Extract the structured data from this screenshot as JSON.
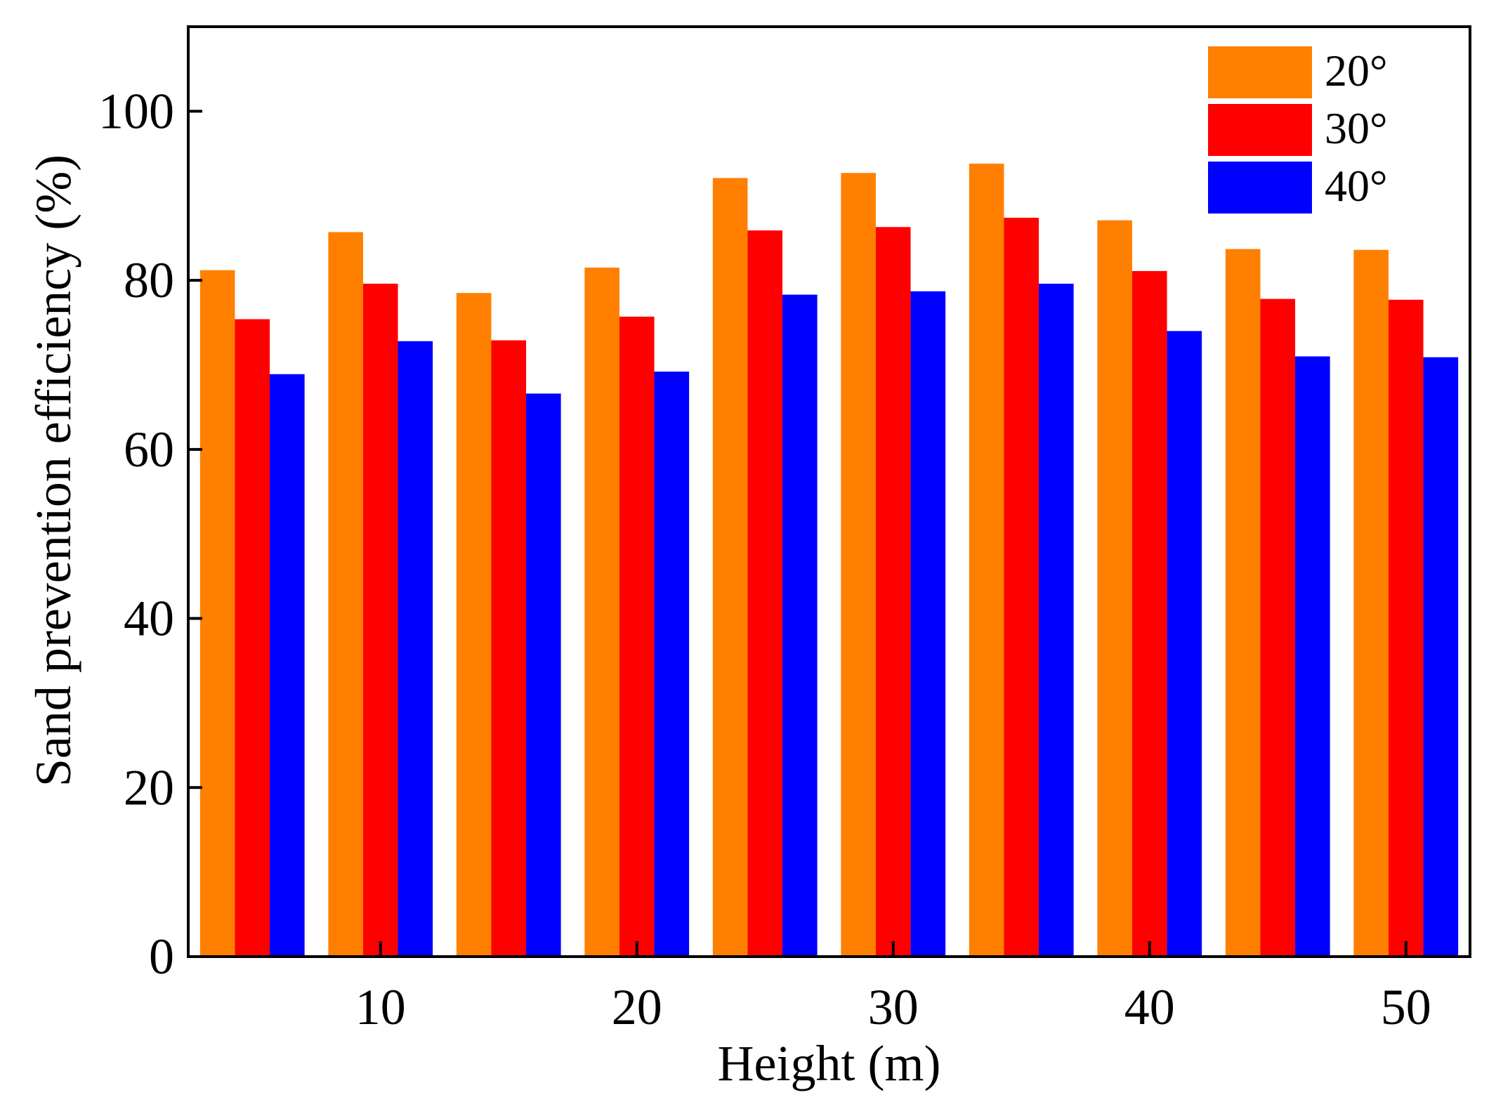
{
  "chart_data": {
    "type": "bar",
    "title": "",
    "xlabel": "Height (m)",
    "ylabel": "Sand prevention efficiency (%)",
    "ylim": [
      0,
      110
    ],
    "xlim": [
      2.5,
      52.5
    ],
    "yticks": [
      0,
      20,
      40,
      60,
      80,
      100
    ],
    "xticks": [
      10,
      20,
      30,
      40,
      50
    ],
    "x": [
      5,
      10,
      15,
      20,
      25,
      30,
      35,
      40,
      45,
      50
    ],
    "legend_position": "top-right",
    "grid": false,
    "series": [
      {
        "name": "20°",
        "color": "#FF8000",
        "values": [
          81.2,
          85.7,
          78.5,
          81.5,
          92.1,
          92.7,
          93.8,
          87.1,
          83.7,
          83.6
        ]
      },
      {
        "name": "30°",
        "color": "#FF0000",
        "values": [
          75.4,
          79.6,
          72.9,
          75.7,
          85.9,
          86.3,
          87.4,
          81.1,
          77.8,
          77.7
        ]
      },
      {
        "name": "40°",
        "color": "#0000FF",
        "values": [
          68.9,
          72.8,
          66.6,
          69.2,
          78.3,
          78.7,
          79.6,
          74.0,
          71.0,
          70.9
        ]
      }
    ]
  }
}
